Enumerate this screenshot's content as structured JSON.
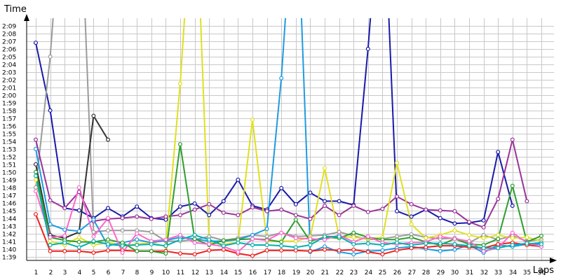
{
  "chart_data": {
    "type": "line",
    "xlabel": "Laps",
    "ylabel": "Time",
    "x": [
      1,
      2,
      3,
      4,
      5,
      6,
      7,
      8,
      9,
      10,
      11,
      12,
      13,
      14,
      15,
      16,
      17,
      18,
      19,
      20,
      21,
      22,
      23,
      24,
      25,
      26,
      27,
      28,
      29,
      30,
      31,
      32,
      33,
      34,
      35,
      36
    ],
    "xlim": [
      1,
      36
    ],
    "ylim": [
      98.5,
      130
    ],
    "y_ticks": [
      99,
      100,
      101,
      102,
      103,
      104,
      105,
      106,
      107,
      108,
      109,
      110,
      111,
      112,
      113,
      114,
      115,
      116,
      117,
      118,
      119,
      120,
      121,
      122,
      123,
      124,
      125,
      126,
      127,
      128,
      129
    ],
    "y_tick_labels": [
      "1:39",
      "1:40",
      "1:41",
      "1:42",
      "1:43",
      "1:44",
      "1:45",
      "1:46",
      "1:47",
      "1:48",
      "1:49",
      "1:50",
      "1:51",
      "1:52",
      "1:53",
      "1:54",
      "1:55",
      "1:56",
      "1:57",
      "1:58",
      "1:59",
      "2:00",
      "2:01",
      "2:02",
      "2:03",
      "2:04",
      "2:05",
      "2:06",
      "2:07",
      "2:08",
      "2:09"
    ],
    "grid": true,
    "legend": "none",
    "series": [
      {
        "color": "#1a1aa8",
        "values": [
          126.8,
          118,
          105.3,
          105,
          104,
          105.3,
          104.2,
          105.5,
          104,
          103.8,
          105.5,
          105.9,
          104.4,
          106.2,
          109,
          105.6,
          105.1,
          107.9,
          105.8,
          107.3,
          106.2,
          106.2,
          105.7,
          126,
          150,
          104.9,
          104.2,
          105.1,
          104,
          103.3,
          103.4,
          103.7,
          112.6,
          105.6,
          null,
          null
        ]
      },
      {
        "color": "#9b9b9b",
        "values": [
          108,
          125,
          150,
          150,
          102.2,
          102.4,
          102.4,
          102.4,
          102.2,
          101,
          101,
          101.2,
          101.6,
          101.1,
          101.4,
          101.8,
          101.6,
          102.1,
          101.6,
          101.7,
          101.8,
          102.2,
          101.7,
          101.2,
          101.3,
          101.6,
          101.9,
          101.5,
          101.3,
          101.4,
          100.8,
          101.8,
          101.2,
          101.7,
          101,
          101.2
        ]
      },
      {
        "color": "#333333",
        "values": [
          111,
          101.8,
          101.4,
          102.2,
          117.3,
          114.2,
          null,
          null,
          null,
          null,
          null,
          null,
          null,
          null,
          null,
          null,
          null,
          null,
          null,
          null,
          null,
          null,
          null,
          null,
          null,
          null,
          null,
          null,
          null,
          null,
          null,
          null,
          null,
          null,
          null,
          null
        ]
      },
      {
        "color": "#993399",
        "values": [
          114.2,
          106.3,
          105.3,
          107.4,
          103.6,
          103.9,
          104,
          104.2,
          103.9,
          104.2,
          104.4,
          105.1,
          105.8,
          104.7,
          104.4,
          105.4,
          104.9,
          105.1,
          104.4,
          103.9,
          105.6,
          104.4,
          105.6,
          104.8,
          105.2,
          106.8,
          105.8,
          105.1,
          105,
          104.9,
          103.5,
          102.8,
          106.5,
          114.2,
          106.2,
          null
        ]
      },
      {
        "color": "#e0e020",
        "values": [
          109,
          101,
          100.5,
          101.5,
          100.5,
          100.8,
          100.5,
          100.6,
          100.8,
          100.3,
          121.5,
          150,
          100.8,
          100.6,
          100.8,
          116.8,
          101,
          101,
          101,
          101.5,
          110.5,
          101.6,
          101.5,
          101.3,
          101.5,
          111.2,
          103.2,
          101.4,
          101.8,
          102.4,
          101.8,
          101.4,
          101.8,
          101.4,
          101.5,
          101
        ]
      },
      {
        "color": "#1e9be0",
        "values": [
          113,
          103.2,
          102.5,
          102.3,
          103.8,
          100.4,
          100.8,
          101.2,
          100.8,
          101.1,
          101.5,
          101.3,
          101,
          101,
          101.2,
          101.8,
          102.6,
          122.2,
          150,
          99.6,
          100.3,
          99.6,
          99.3,
          99.7,
          99.8,
          100.1,
          100.3,
          100,
          99.7,
          99.9,
          100.5,
          99.5,
          100.5,
          100.3,
          100.6,
          100.8
        ]
      },
      {
        "color": "#ee2020",
        "values": [
          104.5,
          99.7,
          99.7,
          99.7,
          99.5,
          99.8,
          99.8,
          99.7,
          99.7,
          99.7,
          99.4,
          99.3,
          99.8,
          99.9,
          99.4,
          99.1,
          99.8,
          99.8,
          99.8,
          99.7,
          99.9,
          99.8,
          99.9,
          99.6,
          99.3,
          99.8,
          100.1,
          100.2,
          100.4,
          100.4,
          100.2,
          100.1,
          100.6,
          100.8,
          100.5,
          100.3
        ]
      },
      {
        "color": "#2e9e2e",
        "values": [
          110,
          101.5,
          101.1,
          100.9,
          100.9,
          101.2,
          100.8,
          99.7,
          99.7,
          99.4,
          113.6,
          101.3,
          100.5,
          101.1,
          101.2,
          101.3,
          101.2,
          100.9,
          103.8,
          101,
          101.5,
          101.4,
          102.1,
          101.5,
          101.2,
          101.2,
          101.5,
          100.9,
          100.5,
          101.3,
          100.6,
          100.5,
          101.3,
          108.2,
          100.9,
          101.7
        ]
      },
      {
        "color": "#ff66cc",
        "values": [
          107.5,
          101.5,
          101.7,
          108,
          101.6,
          104,
          99.5,
          102,
          101,
          101.2,
          101.8,
          100.8,
          100.6,
          100.3,
          99.6,
          101.3,
          101.1,
          102.1,
          101.4,
          101.3,
          101.2,
          101.8,
          100.9,
          101.6,
          100.8,
          100.6,
          100.8,
          100.9,
          101.6,
          101.3,
          101,
          99.7,
          100.1,
          102.1,
          100.8,
          100.3
        ]
      },
      {
        "color": "#00b0b0",
        "values": [
          109.5,
          100.5,
          100.8,
          100.2,
          101,
          100.6,
          100.4,
          100.5,
          100.6,
          100.4,
          101.2,
          101.8,
          101.2,
          100.4,
          100.8,
          100.5,
          100.5,
          100.4,
          100.2,
          100.5,
          101.6,
          101.6,
          100.6,
          100.7,
          100.5,
          100.8,
          100.5,
          100.7,
          100.7,
          100.6,
          100.4,
          100.1,
          100.1,
          100.5,
          100.7,
          100.6
        ]
      }
    ]
  }
}
